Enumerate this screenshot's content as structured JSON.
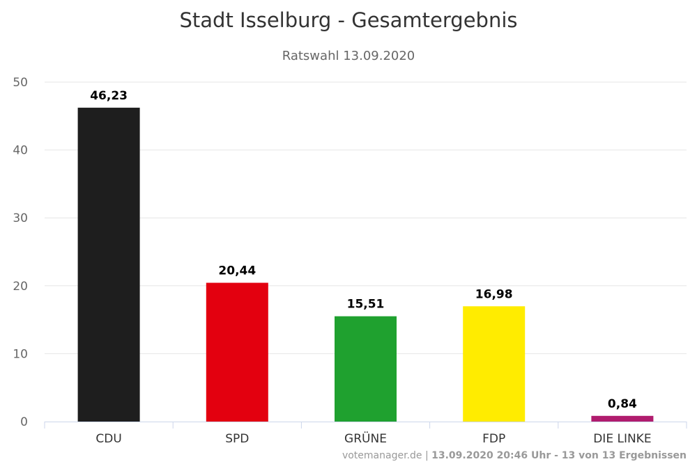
{
  "chart_data": {
    "type": "bar",
    "title": "Stadt Isselburg - Gesamtergebnis",
    "subtitle": "Ratswahl 13.09.2020",
    "categories": [
      "CDU",
      "SPD",
      "GRÜNE",
      "FDP",
      "DIE LINKE"
    ],
    "values": [
      46.23,
      20.44,
      15.51,
      16.98,
      0.84
    ],
    "value_labels": [
      "46,23",
      "20,44",
      "15,51",
      "16,98",
      "0,84"
    ],
    "colors": [
      "#1e1e1e",
      "#e3000f",
      "#1fa12f",
      "#ffec00",
      "#b01c6e"
    ],
    "ylim": [
      0,
      50
    ],
    "yticks": [
      0,
      10,
      20,
      30,
      40,
      50
    ],
    "xlabel": "",
    "ylabel": "",
    "grid": true,
    "legend": "none"
  },
  "credits": {
    "source": "votemanager.de",
    "separator": " | ",
    "timestamp": "13.09.2020 20:46 Uhr - 13 von 13 Ergebnissen"
  }
}
